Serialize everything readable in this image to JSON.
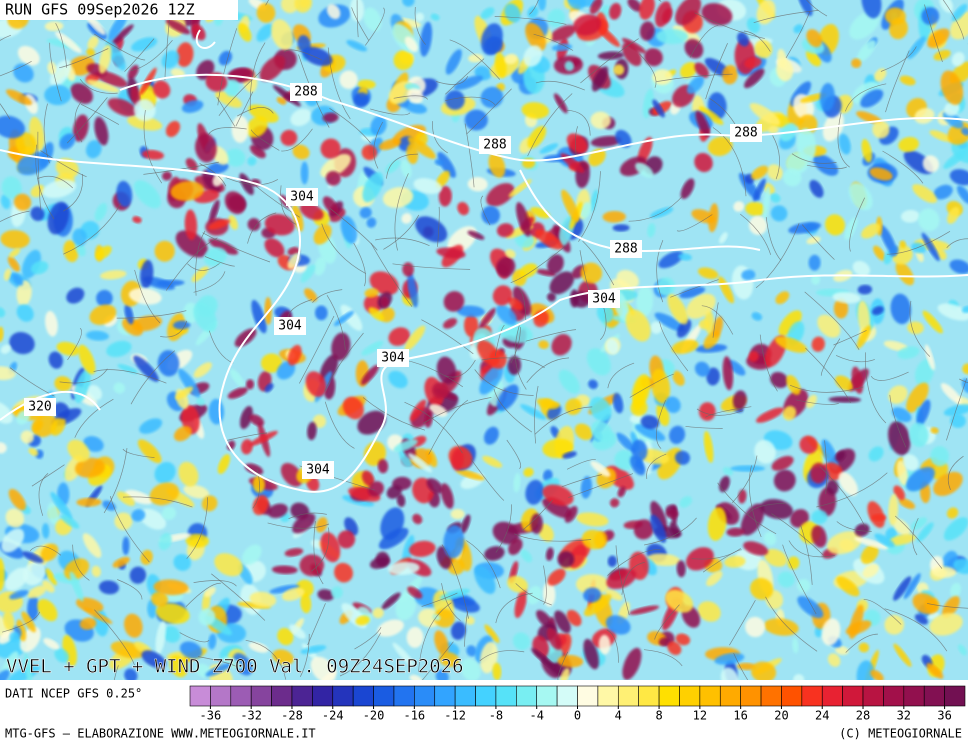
{
  "header": {
    "run": "RUN GFS 09Sep2026 12Z"
  },
  "map": {
    "title": "VVEL + GPT + WIND Z700 Val. 09Z24SEP2026",
    "contour_labels": [
      288,
      288,
      288,
      288,
      304,
      304,
      304,
      304,
      304,
      320
    ]
  },
  "colorbar": {
    "source": "DATI NCEP GFS 0.25°",
    "xlim": [
      -38,
      38
    ],
    "ticks": [
      -36,
      -32,
      -28,
      -24,
      -20,
      -16,
      -12,
      -8,
      -4,
      0,
      4,
      8,
      12,
      16,
      20,
      24,
      28,
      32,
      36
    ],
    "colors": [
      "#c88cd8",
      "#b477c8",
      "#9c5cb4",
      "#86449e",
      "#6c2c8c",
      "#4c2494",
      "#3224a4",
      "#2434bc",
      "#1a46d2",
      "#1a5ce2",
      "#2274f0",
      "#2a8cf8",
      "#32a4ff",
      "#3abcff",
      "#44d2ff",
      "#56e2f8",
      "#78eef2",
      "#a6f8f2",
      "#d4fcf8",
      "#fffce2",
      "#fff8a6",
      "#fff074",
      "#ffe844",
      "#ffe000",
      "#ffd000",
      "#ffc000",
      "#ffaa00",
      "#ff9200",
      "#ff7200",
      "#ff5200",
      "#f83220",
      "#e82232",
      "#d0183a",
      "#b81442",
      "#a2104a",
      "#92104e",
      "#821052",
      "#721052"
    ]
  },
  "footer": {
    "left": "MTG-GFS — ELABORAZIONE WWW.METEOGIORNALE.IT",
    "right": "(C) METEOGIORNALE"
  }
}
